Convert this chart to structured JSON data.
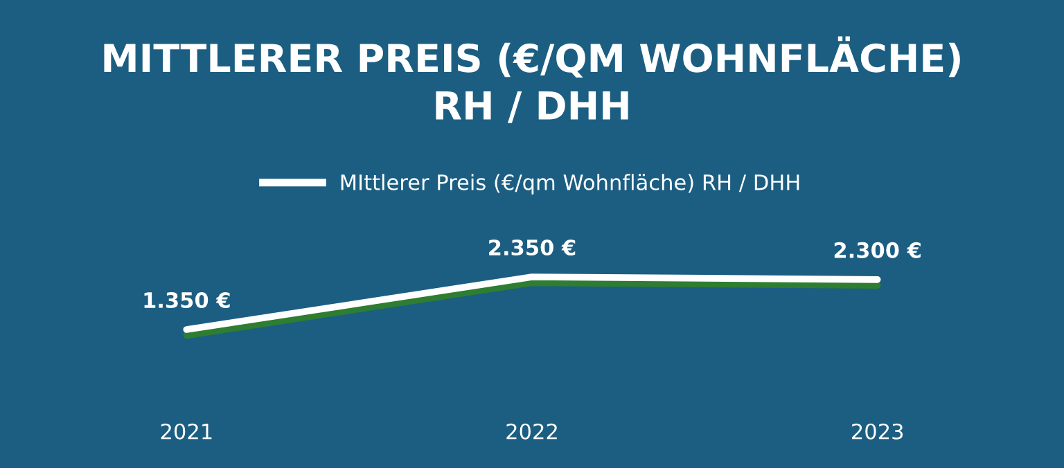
{
  "chart_data": {
    "type": "line",
    "title": "MITTLERER PREIS (€/QM WOHNFLÄCHE)\nRH / DHH",
    "categories": [
      "2021",
      "2022",
      "2023"
    ],
    "series": [
      {
        "name": "MIttlerer Preis (€/qm Wohnfläche) RH / DHH",
        "color": "#ffffff",
        "values": [
          1350,
          2350,
          2300
        ],
        "value_labels": [
          "1.350 €",
          "2.350 €",
          "2.300 €"
        ]
      }
    ],
    "legend": "top",
    "grid": false,
    "line_style": "solid",
    "tick_labels": "x"
  }
}
